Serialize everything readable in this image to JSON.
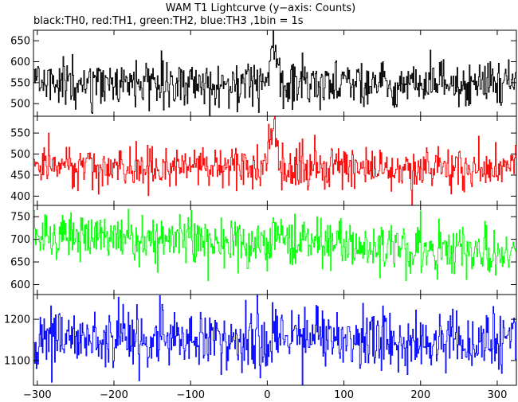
{
  "chart_data": {
    "type": "line",
    "title": "WAM T1 Lightcurve (y−axis: Counts)",
    "subtitle": "black:TH0, red:TH1, green:TH2, blue:TH3 ,1bin = 1s",
    "xlim": [
      -305,
      325
    ],
    "xticks": [
      -300,
      -200,
      -100,
      0,
      100,
      200,
      300
    ],
    "xtick_labels": [
      "−300",
      "−200",
      "−100",
      "0",
      "100",
      "200",
      "300"
    ],
    "bin_seconds": 1,
    "grid": false,
    "panels": [
      {
        "series": "TH0",
        "color": "#000000",
        "ylim": [
          470,
          675
        ],
        "yticks": [
          500,
          550,
          600,
          650
        ],
        "baseline": 548,
        "noise_sd": 28,
        "burst": {
          "start": -2,
          "peak": 8,
          "end": 18,
          "amplitude": 85
        }
      },
      {
        "series": "TH1",
        "color": "#ff0000",
        "ylim": [
          378,
          590
        ],
        "yticks": [
          400,
          450,
          500,
          550
        ],
        "baseline": 468,
        "noise_sd": 25,
        "burst": {
          "start": -2,
          "peak": 8,
          "end": 18,
          "amplitude": 100
        }
      },
      {
        "series": "TH2",
        "color": "#00ff00",
        "ylim": [
          578,
          775
        ],
        "yticks": [
          600,
          650,
          700,
          750
        ],
        "baseline": 690,
        "noise_sd": 28,
        "trend_per_s": -0.06,
        "burst": {
          "start": -2,
          "peak": 8,
          "end": 18,
          "amplitude": 30
        }
      },
      {
        "series": "TH3",
        "color": "#0000ff",
        "ylim": [
          1040,
          1260
        ],
        "yticks": [
          1100,
          1200
        ],
        "baseline": 1150,
        "noise_sd": 35,
        "burst": null
      }
    ]
  }
}
